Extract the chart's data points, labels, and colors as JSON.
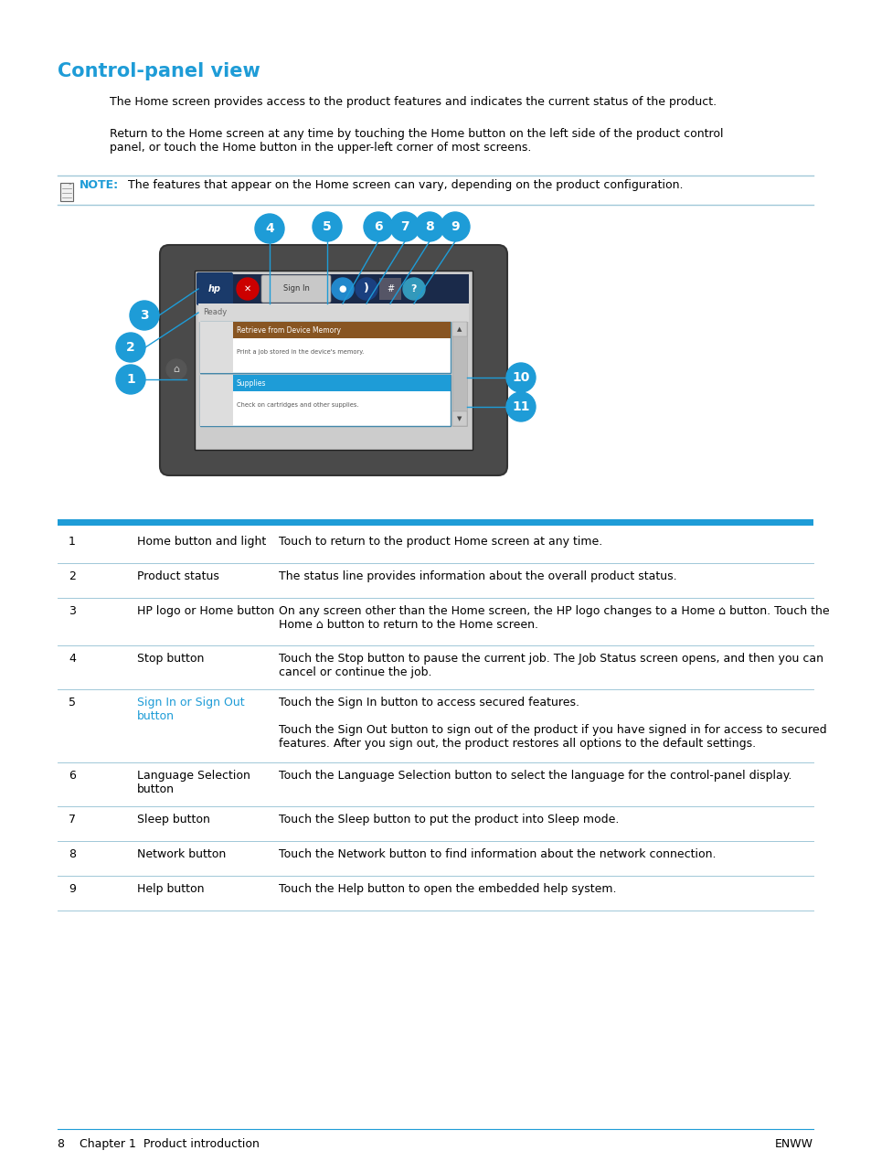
{
  "title": "Control-panel view",
  "title_color": "#1e9cd7",
  "bg_color": "#ffffff",
  "body_text_color": "#000000",
  "para1": "The Home screen provides access to the product features and indicates the current status of the product.",
  "para2": "Return to the Home screen at any time by touching the Home button on the left side of the product control\npanel, or touch the Home button in the upper-left corner of most screens.",
  "note_label": "NOTE:",
  "note_text": "The features that appear on the Home screen can vary, depending on the product configuration.",
  "note_color": "#1e9cd7",
  "table_header_color": "#1e9cd7",
  "row_separator_color": "#a0c8d8",
  "bubble_color": "#1e9cd7",
  "bubble_text_color": "#ffffff",
  "connector_color": "#1e9cd7",
  "footer_left": "8    Chapter 1  Product introduction",
  "footer_right": "ENWW",
  "table_rows": [
    {
      "num": "1",
      "label": "Home button and light",
      "label_color": "#000000",
      "desc_parts": [
        {
          "text": "Touch to return to the product Home screen at any time.",
          "color": "#000000"
        }
      ]
    },
    {
      "num": "2",
      "label": "Product status",
      "label_color": "#000000",
      "desc_parts": [
        {
          "text": "The status line provides information about the overall product status.",
          "color": "#000000"
        }
      ]
    },
    {
      "num": "3",
      "label": "HP logo or Home button",
      "label_color": "#000000",
      "desc_parts": [
        {
          "text": "On any screen other than the Home screen, the HP logo changes to a Home ⌂ button. Touch the\nHome ⌂ button to return to the Home screen.",
          "color": "#000000"
        }
      ]
    },
    {
      "num": "4",
      "label": "Stop button",
      "label_color": "#000000",
      "desc_parts": [
        {
          "text": "Touch the Stop button to pause the current job. The ",
          "color": "#000000"
        },
        {
          "text": "Job Status",
          "color": "#1e9cd7"
        },
        {
          "text": " screen opens, and then you can\ncancel or continue the job.",
          "color": "#000000"
        }
      ]
    },
    {
      "num": "5",
      "label": "Sign In or Sign Out\nbutton",
      "label_color": "#1e9cd7",
      "desc_parts": [
        {
          "text": "Touch the ",
          "color": "#000000"
        },
        {
          "text": "Sign In",
          "color": "#1e9cd7"
        },
        {
          "text": " button to access secured features.\n\nTouch the ",
          "color": "#000000"
        },
        {
          "text": "Sign Out",
          "color": "#1e9cd7"
        },
        {
          "text": " button to sign out of the product if you have signed in for access to secured\nfeatures. After you sign out, the product restores all options to the default settings.",
          "color": "#000000"
        }
      ]
    },
    {
      "num": "6",
      "label": "Language Selection\nbutton",
      "label_color": "#000000",
      "desc_parts": [
        {
          "text": "Touch the Language Selection button to select the language for the control-panel display.",
          "color": "#000000"
        }
      ]
    },
    {
      "num": "7",
      "label": "Sleep button",
      "label_color": "#000000",
      "desc_parts": [
        {
          "text": "Touch the Sleep button to put the product into Sleep mode.",
          "color": "#000000"
        }
      ]
    },
    {
      "num": "8",
      "label": "Network button",
      "label_color": "#000000",
      "desc_parts": [
        {
          "text": "Touch the Network button to find information about the network connection.",
          "color": "#000000"
        }
      ]
    },
    {
      "num": "9",
      "label": "Help button",
      "label_color": "#000000",
      "desc_parts": [
        {
          "text": "Touch the Help button to open the embedded help system.",
          "color": "#000000"
        }
      ]
    }
  ]
}
